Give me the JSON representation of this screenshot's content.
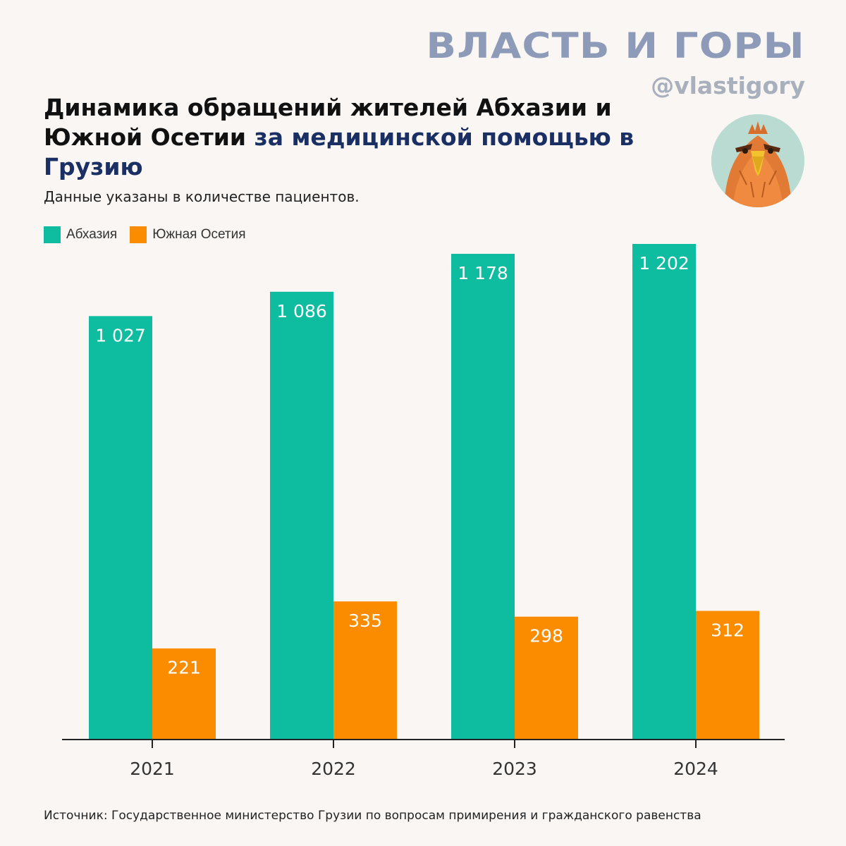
{
  "brand": {
    "name": "ВЛАСТЬ И ГОРЫ",
    "handle": "@vlastigory",
    "avatar_icon": "eagle-avatar-icon"
  },
  "title": {
    "part1": "Динамика обращений жителей Абхазии и Южной Осетии",
    "part2": "за медицинской помощью в Грузию"
  },
  "subtitle": "Данные указаны в количестве пациентов.",
  "source": "Источник: Государственное министерство Грузии по вопросам примирения и гражданского равенства",
  "colors": {
    "abkhazia": "#0ebd9f",
    "south_ossetia": "#fb8c00",
    "title_highlight": "#1a2f63",
    "brand": "#8e9bb8"
  },
  "chart_data": {
    "type": "bar",
    "categories": [
      "2021",
      "2022",
      "2023",
      "2024"
    ],
    "series": [
      {
        "name": "Абхазия",
        "values": [
          1027,
          1086,
          1178,
          1202
        ],
        "labels": [
          "1 027",
          "1 086",
          "1 178",
          "1 202"
        ]
      },
      {
        "name": "Южная Осетия",
        "values": [
          221,
          335,
          298,
          312
        ],
        "labels": [
          "221",
          "335",
          "298",
          "312"
        ]
      }
    ],
    "ylim": [
      0,
      1202
    ],
    "legend": "top-left",
    "grid": false
  }
}
